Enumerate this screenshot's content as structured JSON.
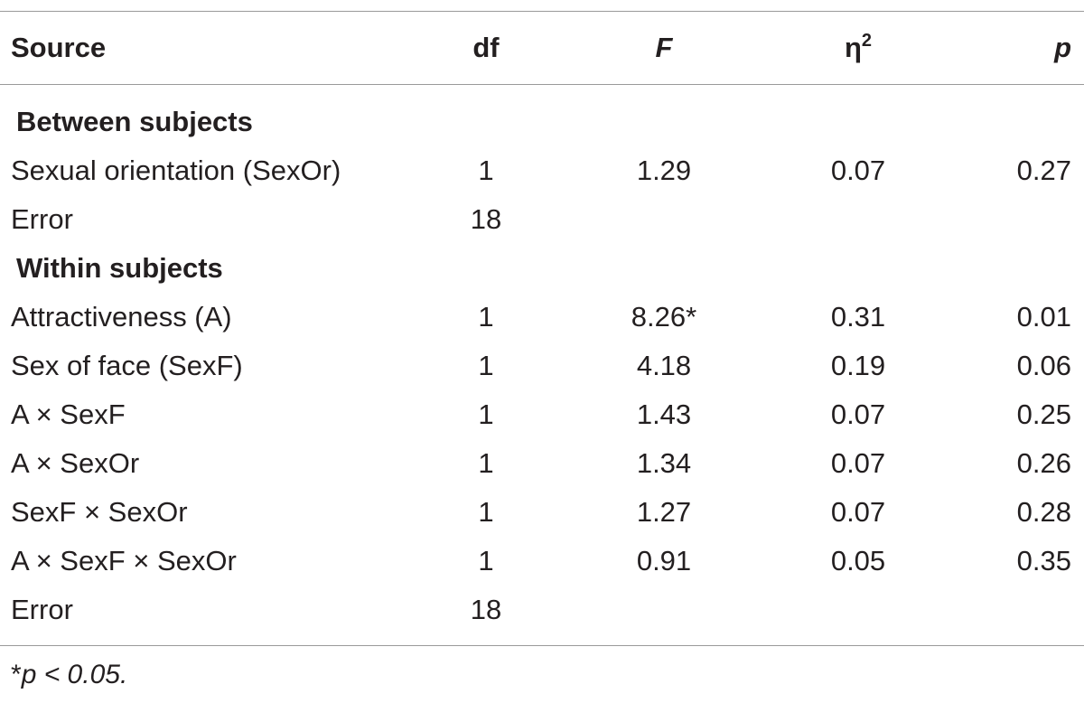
{
  "table": {
    "headers": {
      "source": "Source",
      "df": "df",
      "f": "F",
      "eta": "η",
      "eta_sup": "2",
      "p": "p"
    },
    "sections": [
      {
        "title": "Between subjects",
        "rows": [
          {
            "source": "Sexual orientation (SexOr)",
            "df": "1",
            "f": "1.29",
            "eta": "0.07",
            "p": "0.27"
          },
          {
            "source": "Error",
            "df": "18",
            "f": "",
            "eta": "",
            "p": ""
          }
        ]
      },
      {
        "title": "Within subjects",
        "rows": [
          {
            "source": "Attractiveness (A)",
            "df": "1",
            "f": "8.26*",
            "eta": "0.31",
            "p": "0.01"
          },
          {
            "source": "Sex of face (SexF)",
            "df": "1",
            "f": "4.18",
            "eta": "0.19",
            "p": "0.06"
          },
          {
            "source": "A × SexF",
            "df": "1",
            "f": "1.43",
            "eta": "0.07",
            "p": "0.25"
          },
          {
            "source": "A × SexOr",
            "df": "1",
            "f": "1.34",
            "eta": "0.07",
            "p": "0.26"
          },
          {
            "source": "SexF × SexOr",
            "df": "1",
            "f": "1.27",
            "eta": "0.07",
            "p": "0.28"
          },
          {
            "source": "A × SexF × SexOr",
            "df": "1",
            "f": "0.91",
            "eta": "0.05",
            "p": "0.35"
          },
          {
            "source": "Error",
            "df": "18",
            "f": "",
            "eta": "",
            "p": ""
          }
        ]
      }
    ],
    "footnote": {
      "star": "*",
      "text": "p < 0.05."
    }
  }
}
